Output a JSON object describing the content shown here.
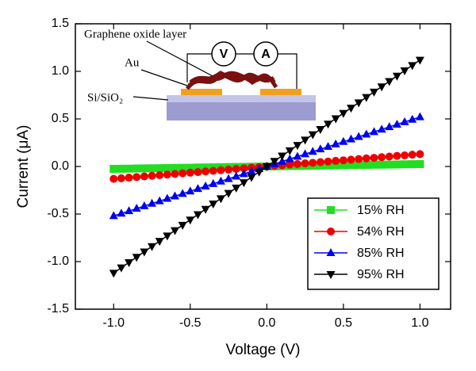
{
  "chart_data": {
    "type": "line",
    "x_label": "Voltage (V)",
    "y_label": "Current (μA)",
    "xlim": [
      -1.25,
      1.2
    ],
    "ylim": [
      -1.5,
      1.5
    ],
    "xticks": [
      {
        "value": -1,
        "label": "-1.0"
      },
      -0.5,
      {
        "value": 0,
        "label": "0.0"
      },
      0.5,
      {
        "value": 1,
        "label": "1.0"
      }
    ],
    "yticks": [
      1.5,
      {
        "value": 1,
        "label": "1.0"
      },
      0.5,
      {
        "value": 0,
        "label": "0.0"
      },
      -0.5,
      {
        "value": -1,
        "label": "-1.0"
      },
      -1.5
    ],
    "legend": "lower right",
    "x": [
      -1,
      -0.95,
      -0.9,
      -0.85,
      -0.8,
      -0.75,
      -0.7,
      -0.65,
      -0.6,
      -0.55,
      -0.5,
      -0.45,
      -0.4,
      -0.35,
      -0.3,
      -0.25,
      -0.2,
      -0.15,
      -0.1,
      -0.05,
      0,
      0.05,
      0.1,
      0.15,
      0.2,
      0.25,
      0.3,
      0.35,
      0.4,
      0.45,
      0.5,
      0.55,
      0.6,
      0.65,
      0.7,
      0.75,
      0.8,
      0.85,
      0.9,
      0.95,
      1
    ],
    "series": [
      {
        "name": "15% RH",
        "color": "#22dd22",
        "marker": "square",
        "values": [
          -0.025,
          -0.024,
          -0.023,
          -0.021,
          -0.02,
          -0.019,
          -0.018,
          -0.016,
          -0.015,
          -0.014,
          -0.013,
          -0.011,
          -0.01,
          -0.009,
          -0.008,
          -0.006,
          -0.005,
          -0.004,
          -0.003,
          -0.001,
          0,
          0.001,
          0.003,
          0.004,
          0.005,
          0.006,
          0.008,
          0.009,
          0.01,
          0.011,
          0.013,
          0.014,
          0.015,
          0.016,
          0.018,
          0.019,
          0.02,
          0.021,
          0.023,
          0.024,
          0.025
        ]
      },
      {
        "name": "54% RH",
        "color": "#ee0000",
        "marker": "circle",
        "values": [
          -0.13,
          -0.124,
          -0.117,
          -0.111,
          -0.104,
          -0.098,
          -0.091,
          -0.085,
          -0.078,
          -0.072,
          -0.065,
          -0.059,
          -0.052,
          -0.046,
          -0.039,
          -0.033,
          -0.026,
          -0.02,
          -0.013,
          -0.007,
          0,
          0.007,
          0.013,
          0.02,
          0.026,
          0.033,
          0.039,
          0.046,
          0.052,
          0.059,
          0.065,
          0.072,
          0.078,
          0.085,
          0.091,
          0.098,
          0.104,
          0.111,
          0.117,
          0.124,
          0.13
        ]
      },
      {
        "name": "85% RH",
        "color": "#0000ee",
        "marker": "triangle-up",
        "values": [
          -0.52,
          -0.494,
          -0.468,
          -0.442,
          -0.416,
          -0.39,
          -0.364,
          -0.338,
          -0.312,
          -0.286,
          -0.26,
          -0.234,
          -0.208,
          -0.182,
          -0.156,
          -0.13,
          -0.104,
          -0.078,
          -0.052,
          -0.026,
          0,
          0.026,
          0.052,
          0.078,
          0.104,
          0.13,
          0.156,
          0.182,
          0.208,
          0.234,
          0.26,
          0.286,
          0.312,
          0.338,
          0.364,
          0.39,
          0.416,
          0.442,
          0.468,
          0.494,
          0.52
        ]
      },
      {
        "name": "95% RH",
        "color": "#000000",
        "marker": "triangle-down",
        "values": [
          -1.12,
          -1.064,
          -1.008,
          -0.952,
          -0.896,
          -0.84,
          -0.784,
          -0.728,
          -0.672,
          -0.616,
          -0.56,
          -0.504,
          -0.448,
          -0.392,
          -0.336,
          -0.28,
          -0.224,
          -0.168,
          -0.112,
          -0.056,
          0,
          0.056,
          0.112,
          0.168,
          0.224,
          0.28,
          0.336,
          0.392,
          0.448,
          0.504,
          0.56,
          0.616,
          0.672,
          0.728,
          0.784,
          0.84,
          0.896,
          0.952,
          1.008,
          1.064,
          1.12
        ]
      }
    ],
    "inset": {
      "layer": "Graphene oxide layer",
      "electrode": "Au",
      "substrate": "Si/SiO₂",
      "voltmeter": "V",
      "ammeter": "A"
    }
  }
}
